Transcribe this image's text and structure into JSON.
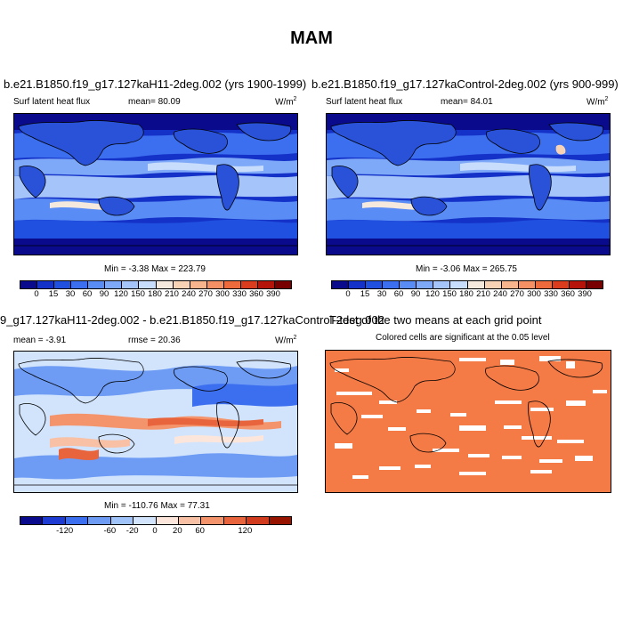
{
  "figure_title": "MAM",
  "panels": {
    "top_left": {
      "case_title": "b.e21.B1850.f19_g17.127kaH11-2deg.002 (yrs 1900-1999)",
      "variable": "Surf latent heat flux",
      "mean_text": "mean=  80.09",
      "units": "W/m",
      "units_exp": "2",
      "minmax": "Min =  -3.38 Max = 223.79"
    },
    "top_right": {
      "case_title": "b.e21.B1850.f19_g17.127kaControl-2deg.002 (yrs 900-999)",
      "variable": "Surf latent heat flux",
      "mean_text": "mean=  84.01",
      "units": "W/m",
      "units_exp": "2",
      "minmax": "Min =  -3.06 Max = 265.75"
    },
    "bottom_left": {
      "case_title": "9_g17.127kaH11-2deg.002 - b.e21.B1850.f19_g17.127kaControl-2deg.002",
      "mean_text": "mean =  -3.91",
      "rmse_text": "rmse =  20.36",
      "units": "W/m",
      "units_exp": "2",
      "minmax": "Min = -110.76 Max =  77.31"
    },
    "bottom_right": {
      "title": "T-test of the two means at each grid point",
      "subtitle": "Colored cells are significant at the 0.05 level"
    }
  },
  "colorbar_abs": {
    "labels": [
      "0",
      "15",
      "30",
      "60",
      "90",
      "120",
      "150",
      "180",
      "210",
      "240",
      "270",
      "300",
      "330",
      "360",
      "390"
    ],
    "colors": [
      "#0a0a8c",
      "#1432c8",
      "#2050e0",
      "#3c6ef0",
      "#5a8cf5",
      "#7ea8f8",
      "#a4c4fa",
      "#c8dcfc",
      "#f5e8dc",
      "#f8d2b4",
      "#f8b48c",
      "#f49064",
      "#ec6a3c",
      "#dc3c1e",
      "#b4140a",
      "#780000"
    ]
  },
  "colorbar_diff": {
    "labels": [
      "-120",
      "-60",
      "-20",
      "0",
      "20",
      "60",
      "120"
    ],
    "colors": [
      "#0a0a8c",
      "#1e3cd2",
      "#3c6ef0",
      "#6e9cf5",
      "#a0c4fa",
      "#d2e4fc",
      "#fce6dc",
      "#f8c0a4",
      "#f4946c",
      "#e8643c",
      "#d23c1e",
      "#961400"
    ]
  },
  "colors": {
    "ttest_fill": "#f47a46",
    "land_outline": "#000000"
  }
}
